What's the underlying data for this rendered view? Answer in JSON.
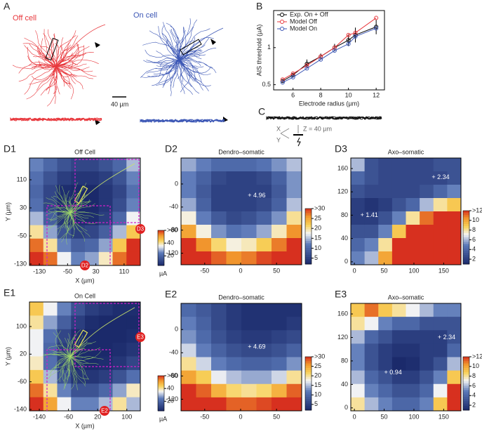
{
  "panel_a": {
    "label": "A",
    "off_title": "Off cell",
    "on_title": "On cell",
    "scale": "40 µm"
  },
  "panel_c": {
    "label": "C",
    "axes": [
      "X",
      "Y"
    ],
    "depth": "Z = 40 µm"
  },
  "chart_data": [
    {
      "type": "line",
      "panel": "B",
      "xlabel": "Electrode radius (µm)",
      "ylabel": "AIS threshold (µA)",
      "x": [
        5.25,
        6,
        7,
        8,
        9,
        10,
        10.5,
        12
      ],
      "xlim": [
        4.6,
        12.6
      ],
      "xticks": [
        6,
        8,
        10,
        12
      ],
      "ylim": [
        0.43,
        1.5
      ],
      "yticks": [
        0.5,
        1
      ],
      "legend": "upper left",
      "series": [
        {
          "name": "Exp. On + Off",
          "color": "#000000",
          "values": [
            0.55,
            0.63,
            0.78,
            0.88,
            1.0,
            1.1,
            1.17,
            1.28
          ],
          "errors": [
            0.02,
            0.03,
            0.06,
            0.04,
            0.05,
            0.08,
            0.1,
            0.1
          ]
        },
        {
          "name": "Model Off",
          "color": "#e8383d",
          "values": [
            0.57,
            0.65,
            0.76,
            0.88,
            1.0,
            1.17,
            1.2,
            1.4
          ]
        },
        {
          "name": "Model On",
          "color": "#3b56b5",
          "values": [
            0.53,
            0.6,
            0.72,
            0.84,
            0.96,
            1.05,
            1.15,
            1.26
          ]
        }
      ]
    },
    {
      "type": "heatmap",
      "panel": "D1",
      "title": "Off Cell",
      "xlabel": "X (µm)",
      "ylabel": "Y (µm)",
      "unit": "µA",
      "xlim": [
        -158,
        156
      ],
      "ylim": [
        -134,
        172
      ],
      "xticks": [
        -130,
        -50,
        30,
        110
      ],
      "yticks": [
        -130,
        -50,
        30,
        110
      ],
      "clim": [
        5,
        60
      ],
      "cticks": [
        20,
        40,
        {
          "value": 60,
          "label": ">60"
        }
      ],
      "callouts": [
        "D3",
        "D2"
      ],
      "values": [
        [
          25,
          20,
          15,
          12,
          12,
          15,
          20,
          30
        ],
        [
          22,
          15,
          10,
          8,
          8,
          10,
          15,
          25
        ],
        [
          20,
          12,
          6,
          5,
          5,
          8,
          12,
          22
        ],
        [
          22,
          12,
          6,
          5,
          5,
          8,
          14,
          25
        ],
        [
          30,
          18,
          8,
          6,
          6,
          10,
          20,
          35
        ],
        [
          40,
          28,
          15,
          10,
          12,
          18,
          30,
          45
        ],
        [
          55,
          40,
          25,
          18,
          20,
          28,
          45,
          60
        ],
        [
          60,
          55,
          35,
          25,
          28,
          38,
          55,
          60
        ]
      ]
    },
    {
      "type": "heatmap",
      "panel": "D2",
      "title": "Dendro–somatic",
      "xlim": [
        -83,
        85
      ],
      "ylim": [
        -140,
        45
      ],
      "xticks": [
        -50,
        0,
        50
      ],
      "yticks": [
        0,
        -40,
        -80,
        -120
      ],
      "clim": [
        2,
        30
      ],
      "cticks": [
        5,
        10,
        15,
        20,
        25,
        {
          "value": 30,
          "label": ">30"
        }
      ],
      "annotations": [
        {
          "text": "+ 4.96",
          "x": 10,
          "y": -20
        }
      ],
      "values": [
        [
          14,
          12,
          10,
          10,
          10,
          11,
          13,
          15
        ],
        [
          12,
          9,
          6,
          5,
          5,
          6,
          9,
          13
        ],
        [
          12,
          8,
          5,
          5,
          5,
          5,
          8,
          13
        ],
        [
          14,
          9,
          5,
          5,
          5,
          6,
          9,
          15
        ],
        [
          18,
          12,
          8,
          6,
          7,
          9,
          13,
          20
        ],
        [
          25,
          18,
          13,
          11,
          12,
          14,
          19,
          26
        ],
        [
          30,
          26,
          21,
          18,
          19,
          22,
          27,
          30
        ],
        [
          30,
          30,
          28,
          26,
          27,
          29,
          30,
          30
        ]
      ]
    },
    {
      "type": "heatmap",
      "panel": "D3",
      "title": "Axo–somatic",
      "xlim": [
        -6,
        179
      ],
      "ylim": [
        -5,
        178
      ],
      "xticks": [
        0,
        50,
        100,
        150
      ],
      "yticks": [
        0,
        40,
        80,
        120,
        160
      ],
      "clim": [
        1,
        12
      ],
      "cticks": [
        2,
        4,
        6,
        8,
        10,
        {
          "value": 12,
          "label": ">12"
        }
      ],
      "annotations": [
        {
          "text": "+ 2.34",
          "x": 130,
          "y": 145
        },
        {
          "text": "+ 1.41",
          "x": 10,
          "y": 80
        }
      ],
      "values": [
        [
          6,
          3,
          2.5,
          2.5,
          2.5,
          2.5,
          3,
          3
        ],
        [
          4,
          3,
          2.5,
          2.5,
          2.5,
          2.5,
          2.5,
          3
        ],
        [
          3,
          2.5,
          2.5,
          2.5,
          2.5,
          3,
          4,
          5
        ],
        [
          2,
          1.5,
          2,
          3,
          4,
          6,
          8,
          9
        ],
        [
          2,
          2,
          3,
          5,
          8,
          11,
          12,
          12
        ],
        [
          3,
          3,
          5,
          9,
          12,
          12,
          12,
          12
        ],
        [
          4,
          5,
          8,
          12,
          12,
          12,
          12,
          12
        ],
        [
          5,
          6,
          10,
          12,
          12,
          12,
          12,
          12
        ]
      ]
    },
    {
      "type": "heatmap",
      "panel": "E1",
      "title": "On Cell",
      "xlabel": "X (µm)",
      "ylabel": "Y (µm)",
      "unit": "µA",
      "xlim": [
        -167,
        137
      ],
      "ylim": [
        -144,
        171
      ],
      "xticks": [
        -140,
        -60,
        20,
        100
      ],
      "yticks": [
        -140,
        -60,
        20,
        100
      ],
      "clim": [
        5,
        60
      ],
      "cticks": [
        20,
        40,
        {
          "value": 60,
          "label": ">60"
        }
      ],
      "callouts": [
        "E3",
        "E2"
      ],
      "values": [
        [
          45,
          35,
          25,
          15,
          10,
          8,
          6,
          6
        ],
        [
          40,
          28,
          18,
          10,
          6,
          5,
          5,
          5
        ],
        [
          35,
          22,
          12,
          6,
          5,
          5,
          5,
          6
        ],
        [
          35,
          20,
          10,
          5,
          5,
          5,
          6,
          8
        ],
        [
          38,
          22,
          10,
          6,
          5,
          6,
          8,
          12
        ],
        [
          45,
          30,
          15,
          8,
          8,
          10,
          15,
          22
        ],
        [
          55,
          40,
          25,
          15,
          15,
          20,
          28,
          38
        ],
        [
          60,
          50,
          35,
          25,
          25,
          30,
          40,
          30
        ]
      ]
    },
    {
      "type": "heatmap",
      "panel": "E2",
      "title": "Dendro–somatic",
      "xlim": [
        -83,
        85
      ],
      "ylim": [
        -140,
        45
      ],
      "xticks": [
        -50,
        0,
        50
      ],
      "yticks": [
        0,
        -40,
        -80,
        -120
      ],
      "clim": [
        2,
        30
      ],
      "cticks": [
        5,
        10,
        15,
        20,
        25,
        {
          "value": 30,
          "label": ">30"
        }
      ],
      "annotations": [
        {
          "text": "+ 4.69",
          "x": 10,
          "y": -30
        }
      ],
      "values": [
        [
          10,
          8,
          6,
          4,
          3,
          3,
          3,
          3
        ],
        [
          12,
          9,
          6,
          4,
          3,
          3,
          3,
          4
        ],
        [
          13,
          10,
          7,
          5,
          4,
          4,
          5,
          6
        ],
        [
          16,
          12,
          9,
          7,
          6,
          6,
          7,
          9
        ],
        [
          20,
          16,
          12,
          10,
          9,
          9,
          10,
          13
        ],
        [
          25,
          22,
          17,
          15,
          14,
          14,
          16,
          20
        ],
        [
          30,
          28,
          24,
          21,
          20,
          21,
          24,
          28
        ],
        [
          30,
          30,
          30,
          28,
          28,
          29,
          30,
          30
        ]
      ]
    },
    {
      "type": "heatmap",
      "panel": "E3",
      "title": "Axo–somatic",
      "xlim": [
        -6,
        179
      ],
      "ylim": [
        -5,
        178
      ],
      "xticks": [
        0,
        50,
        100,
        150
      ],
      "yticks": [
        0,
        40,
        80,
        120,
        160
      ],
      "clim": [
        1,
        12
      ],
      "cticks": [
        2,
        4,
        6,
        8,
        10,
        {
          "value": 12,
          "label": ">12"
        }
      ],
      "annotations": [
        {
          "text": "+ 2.34",
          "x": 140,
          "y": 120
        },
        {
          "text": "+ 0.94",
          "x": 50,
          "y": 60
        }
      ],
      "values": [
        [
          9,
          11,
          9,
          8,
          7,
          6,
          5,
          5
        ],
        [
          8,
          7,
          5,
          4,
          4,
          3,
          3,
          3
        ],
        [
          6,
          4,
          3,
          2,
          2,
          2,
          2,
          3
        ],
        [
          5,
          3,
          2,
          1.5,
          1.5,
          2,
          2,
          4
        ],
        [
          5,
          3,
          2,
          1,
          1.2,
          2,
          3,
          6
        ],
        [
          6,
          4,
          3,
          2,
          2,
          3,
          5,
          9
        ],
        [
          7,
          5,
          4,
          3,
          3,
          4,
          7,
          12
        ],
        [
          8,
          6,
          5,
          4,
          4,
          5,
          9,
          12
        ]
      ]
    }
  ]
}
